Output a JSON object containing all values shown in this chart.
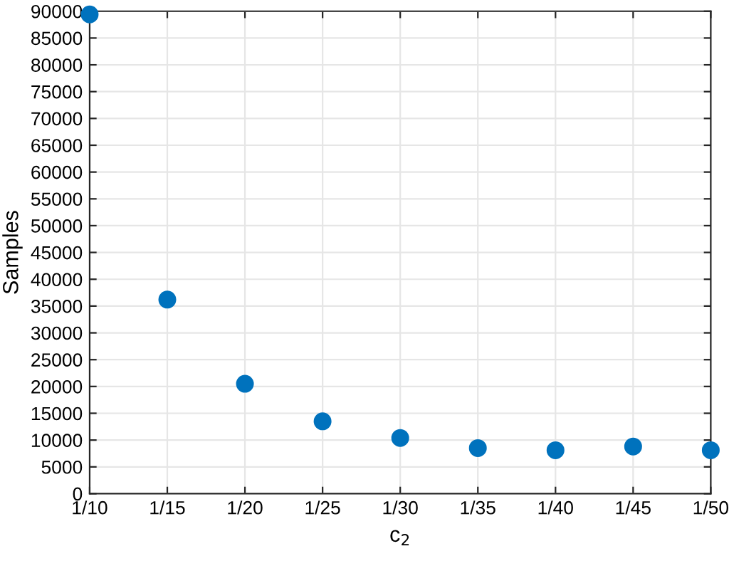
{
  "chart_data": {
    "type": "scatter",
    "xlabel": "c$_{2}$",
    "ylabel": "Samples",
    "categories": [
      "1/10",
      "1/15",
      "1/20",
      "1/25",
      "1/30",
      "1/35",
      "1/40",
      "1/45",
      "1/50"
    ],
    "series": [
      {
        "color": "#0072bd",
        "values": [
          89400,
          36200,
          20500,
          13500,
          10400,
          8500,
          8100,
          8800,
          8100
        ]
      }
    ],
    "ylim": [
      0,
      90000
    ],
    "yticks": [
      0,
      5000,
      10000,
      15000,
      20000,
      25000,
      30000,
      35000,
      40000,
      45000,
      50000,
      55000,
      60000,
      65000,
      70000,
      75000,
      80000,
      85000,
      90000
    ],
    "grid": true,
    "marker": "circle"
  }
}
